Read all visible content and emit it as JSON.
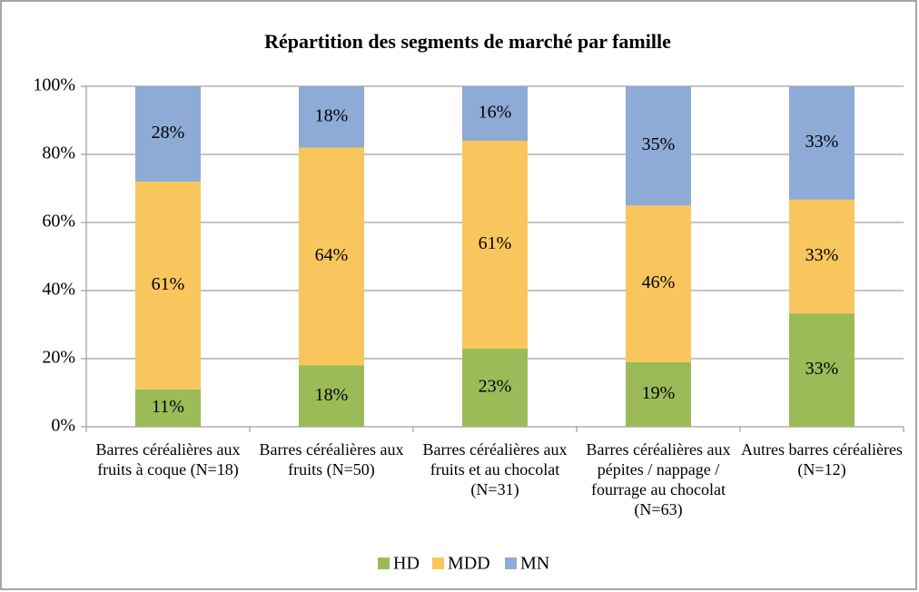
{
  "chart_data": {
    "type": "stacked_bar",
    "title": "Répartition des segments de marché par famille",
    "categories": [
      "Barres céréalières aux fruits à coque (N=18)",
      "Barres céréalières aux fruits (N=50)",
      "Barres céréalières aux fruits et au chocolat (N=31)",
      "Barres céréalières aux pépites / nappage / fourrage au chocolat (N=63)",
      "Autres barres céréalières (N=12)"
    ],
    "series": [
      {
        "name": "HD",
        "color": "#9bbb59",
        "values": [
          11,
          18,
          23,
          19,
          33.3
        ],
        "value_labels": [
          "11%",
          "18%",
          "23%",
          "19%",
          "33%"
        ]
      },
      {
        "name": "MDD",
        "color": "#f9c65e",
        "values": [
          61,
          64,
          61,
          46,
          33.4
        ],
        "value_labels": [
          "61%",
          "64%",
          "61%",
          "46%",
          "33%"
        ]
      },
      {
        "name": "MN",
        "color": "#8eaad6",
        "values": [
          28,
          18,
          16,
          35,
          33.3
        ],
        "value_labels": [
          "28%",
          "18%",
          "16%",
          "35%",
          "33%"
        ]
      }
    ],
    "ylim": [
      0,
      100
    ],
    "yticks": [
      {
        "value": 0,
        "label": "0%"
      },
      {
        "value": 20,
        "label": "20%"
      },
      {
        "value": 40,
        "label": "40%"
      },
      {
        "value": 60,
        "label": "60%"
      },
      {
        "value": 80,
        "label": "80%"
      },
      {
        "value": 100,
        "label": "100%"
      }
    ],
    "grid": true,
    "legend": "bottom"
  }
}
